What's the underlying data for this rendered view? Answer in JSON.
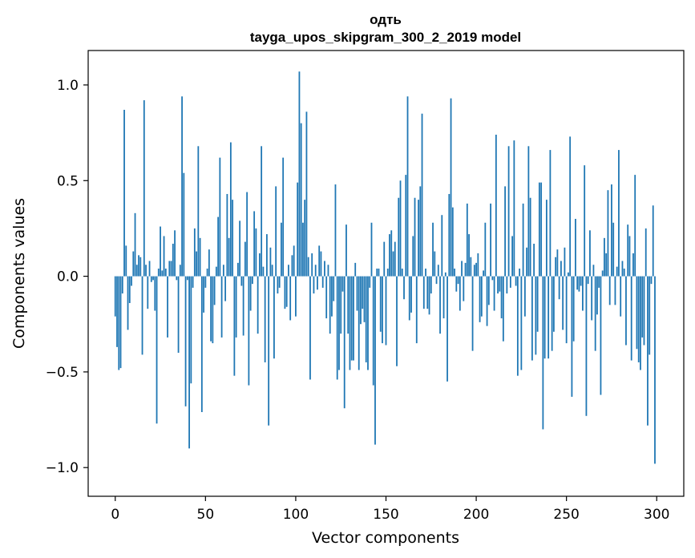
{
  "chart_data": {
    "type": "bar",
    "title": "одть",
    "subtitle": "tayga_upos_skipgram_300_2_2019 model",
    "xlabel": "Vector components",
    "ylabel": "Components values",
    "xlim": [
      -15,
      315
    ],
    "ylim": [
      -1.15,
      1.18
    ],
    "xticks": [
      0,
      50,
      100,
      150,
      200,
      250,
      300
    ],
    "yticks": [
      -1.0,
      -0.5,
      0.0,
      0.5,
      1.0
    ],
    "xtick_labels": [
      "0",
      "50",
      "100",
      "150",
      "200",
      "250",
      "300"
    ],
    "ytick_labels": [
      "−1.0",
      "−0.5",
      "0.0",
      "0.5",
      "1.0"
    ],
    "bar_color": "#1f77b4",
    "grid": false,
    "x": [
      0,
      1,
      2,
      3,
      4,
      5,
      6,
      7,
      8,
      9,
      10,
      11,
      12,
      13,
      14,
      15,
      16,
      17,
      18,
      19,
      20,
      21,
      22,
      23,
      24,
      25,
      26,
      27,
      28,
      29,
      30,
      31,
      32,
      33,
      34,
      35,
      36,
      37,
      38,
      39,
      40,
      41,
      42,
      43,
      44,
      45,
      46,
      47,
      48,
      49,
      50,
      51,
      52,
      53,
      54,
      55,
      56,
      57,
      58,
      59,
      60,
      61,
      62,
      63,
      64,
      65,
      66,
      67,
      68,
      69,
      70,
      71,
      72,
      73,
      74,
      75,
      76,
      77,
      78,
      79,
      80,
      81,
      82,
      83,
      84,
      85,
      86,
      87,
      88,
      89,
      90,
      91,
      92,
      93,
      94,
      95,
      96,
      97,
      98,
      99,
      100,
      101,
      102,
      103,
      104,
      105,
      106,
      107,
      108,
      109,
      110,
      111,
      112,
      113,
      114,
      115,
      116,
      117,
      118,
      119,
      120,
      121,
      122,
      123,
      124,
      125,
      126,
      127,
      128,
      129,
      130,
      131,
      132,
      133,
      134,
      135,
      136,
      137,
      138,
      139,
      140,
      141,
      142,
      143,
      144,
      145,
      146,
      147,
      148,
      149,
      150,
      151,
      152,
      153,
      154,
      155,
      156,
      157,
      158,
      159,
      160,
      161,
      162,
      163,
      164,
      165,
      166,
      167,
      168,
      169,
      170,
      171,
      172,
      173,
      174,
      175,
      176,
      177,
      178,
      179,
      180,
      181,
      182,
      183,
      184,
      185,
      186,
      187,
      188,
      189,
      190,
      191,
      192,
      193,
      194,
      195,
      196,
      197,
      198,
      199,
      200,
      201,
      202,
      203,
      204,
      205,
      206,
      207,
      208,
      209,
      210,
      211,
      212,
      213,
      214,
      215,
      216,
      217,
      218,
      219,
      220,
      221,
      222,
      223,
      224,
      225,
      226,
      227,
      228,
      229,
      230,
      231,
      232,
      233,
      234,
      235,
      236,
      237,
      238,
      239,
      240,
      241,
      242,
      243,
      244,
      245,
      246,
      247,
      248,
      249,
      250,
      251,
      252,
      253,
      254,
      255,
      256,
      257,
      258,
      259,
      260,
      261,
      262,
      263,
      264,
      265,
      266,
      267,
      268,
      269,
      270,
      271,
      272,
      273,
      274,
      275,
      276,
      277,
      278,
      279,
      280,
      281,
      282,
      283,
      284,
      285,
      286,
      287,
      288,
      289,
      290,
      291,
      292,
      293,
      294,
      295,
      296,
      297,
      298,
      299
    ],
    "values": [
      -0.21,
      -0.37,
      -0.49,
      -0.48,
      -0.09,
      0.87,
      0.16,
      -0.28,
      -0.14,
      -0.05,
      0.13,
      0.33,
      0.06,
      0.11,
      0.1,
      -0.41,
      0.92,
      0.06,
      -0.17,
      0.08,
      -0.03,
      -0.02,
      -0.18,
      -0.77,
      0.04,
      0.26,
      0.03,
      0.21,
      0.04,
      -0.32,
      0.08,
      0.08,
      0.17,
      0.24,
      -0.02,
      -0.4,
      0.06,
      0.94,
      0.54,
      -0.68,
      -0.02,
      -0.9,
      -0.56,
      -0.06,
      0.25,
      0.13,
      0.68,
      0.2,
      -0.71,
      -0.19,
      -0.06,
      0.04,
      0.14,
      -0.34,
      -0.35,
      -0.15,
      0.05,
      0.31,
      0.62,
      -0.32,
      0.06,
      -0.13,
      0.43,
      0.2,
      0.7,
      0.4,
      -0.52,
      -0.32,
      0.07,
      0.29,
      -0.05,
      -0.31,
      0.18,
      0.44,
      -0.57,
      -0.18,
      -0.04,
      0.34,
      0.25,
      -0.3,
      0.12,
      0.68,
      0.05,
      -0.45,
      0.22,
      -0.78,
      0.15,
      0.06,
      -0.43,
      0.47,
      -0.09,
      -0.06,
      0.28,
      0.62,
      -0.17,
      -0.16,
      0.06,
      -0.23,
      0.11,
      0.16,
      -0.21,
      0.49,
      1.07,
      0.8,
      0.28,
      0.4,
      0.86,
      0.1,
      -0.54,
      0.12,
      -0.09,
      0.06,
      -0.07,
      0.16,
      0.13,
      -0.06,
      0.08,
      -0.22,
      0.06,
      -0.3,
      -0.21,
      -0.13,
      0.48,
      -0.54,
      -0.49,
      -0.3,
      -0.08,
      -0.69,
      0.27,
      -0.3,
      -0.49,
      -0.44,
      -0.44,
      0.07,
      -0.18,
      -0.49,
      -0.25,
      -0.17,
      -0.24,
      -0.45,
      -0.49,
      -0.06,
      0.28,
      -0.57,
      -0.88,
      0.04,
      0.04,
      -0.29,
      -0.35,
      0.18,
      -0.36,
      0.04,
      0.22,
      0.24,
      0.13,
      0.18,
      -0.47,
      0.41,
      0.5,
      0.04,
      -0.12,
      0.53,
      0.94,
      -0.23,
      -0.19,
      0.21,
      0.41,
      -0.35,
      0.4,
      0.47,
      0.85,
      -0.17,
      0.04,
      -0.17,
      -0.2,
      -0.09,
      0.28,
      0.13,
      -0.04,
      0.06,
      -0.3,
      0.32,
      -0.22,
      0.02,
      -0.55,
      0.43,
      0.93,
      0.36,
      0.04,
      -0.08,
      -0.04,
      -0.18,
      0.08,
      -0.13,
      0.07,
      0.38,
      0.22,
      0.1,
      -0.39,
      0.06,
      0.07,
      0.12,
      -0.24,
      -0.21,
      0.03,
      0.28,
      -0.26,
      -0.15,
      0.38,
      -0.02,
      -0.18,
      0.74,
      -0.09,
      -0.08,
      -0.22,
      -0.34,
      0.47,
      -0.09,
      0.68,
      -0.06,
      0.21,
      0.71,
      -0.05,
      -0.52,
      0.04,
      -0.49,
      0.38,
      -0.21,
      0.15,
      0.68,
      0.41,
      -0.44,
      0.17,
      -0.41,
      -0.29,
      0.49,
      0.49,
      -0.8,
      -0.43,
      0.4,
      -0.43,
      0.66,
      -0.39,
      -0.29,
      0.1,
      0.14,
      -0.12,
      0.08,
      -0.28,
      0.15,
      -0.35,
      0.02,
      0.73,
      -0.63,
      -0.34,
      0.3,
      -0.07,
      -0.08,
      -0.05,
      -0.18,
      0.58,
      -0.73,
      -0.04,
      0.24,
      -0.23,
      0.06,
      -0.39,
      -0.2,
      -0.06,
      -0.62,
      0.03,
      0.2,
      0.12,
      0.45,
      -0.15,
      0.48,
      0.28,
      -0.15,
      0.05,
      0.66,
      -0.21,
      0.08,
      0.04,
      -0.36,
      0.27,
      0.21,
      -0.44,
      0.12,
      0.53,
      -0.38,
      -0.45,
      -0.49,
      -0.32,
      -0.36,
      0.25,
      -0.78,
      -0.41,
      -0.04,
      0.37,
      -0.98
    ]
  }
}
